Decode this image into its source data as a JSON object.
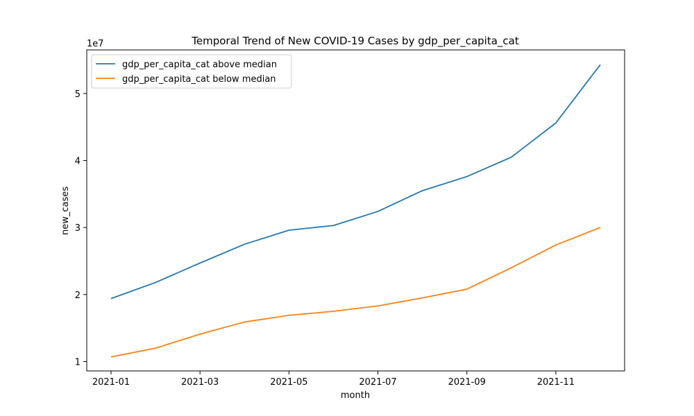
{
  "chart_data": {
    "type": "line",
    "title": "Temporal Trend of New COVID-19 Cases by gdp_per_capita_cat",
    "xlabel": "month",
    "ylabel": "new_cases",
    "y_scale_label": "1e7",
    "x": [
      "2021-01",
      "2021-02",
      "2021-03",
      "2021-04",
      "2021-05",
      "2021-06",
      "2021-07",
      "2021-08",
      "2021-09",
      "2021-10",
      "2021-11",
      "2021-12"
    ],
    "x_ticks": [
      "2021-01",
      "2021-03",
      "2021-05",
      "2021-07",
      "2021-09",
      "2021-11"
    ],
    "y_ticks": [
      1,
      2,
      3,
      4,
      5
    ],
    "ylim": [
      0.86,
      5.65
    ],
    "y_unit_multiplier": 10000000,
    "grid": false,
    "legend_position": "upper-left",
    "series": [
      {
        "name": "gdp_per_capita_cat above median",
        "color": "#1f77b4",
        "values": [
          1.94,
          2.18,
          2.47,
          2.75,
          2.96,
          3.03,
          3.24,
          3.55,
          3.76,
          4.05,
          4.56,
          5.43
        ]
      },
      {
        "name": "gdp_per_capita_cat below median",
        "color": "#ff7f0e",
        "values": [
          1.07,
          1.2,
          1.41,
          1.59,
          1.69,
          1.75,
          1.83,
          1.95,
          2.08,
          2.4,
          2.74,
          3.0
        ]
      }
    ]
  }
}
